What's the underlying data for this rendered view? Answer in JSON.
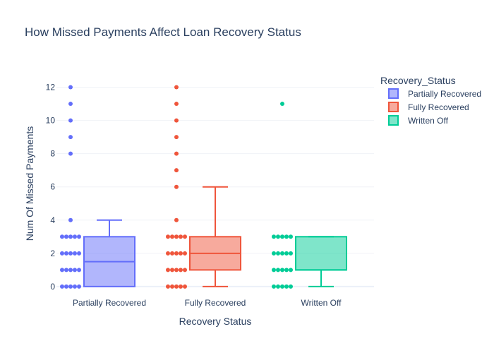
{
  "chart_data": {
    "type": "box",
    "title": "How Missed Payments Affect Loan Recovery Status",
    "xlabel": "Recovery Status",
    "ylabel": "Num Of Missed Payments",
    "ylim": [
      -0.6,
      13
    ],
    "yticks": [
      0,
      2,
      4,
      6,
      8,
      10,
      12
    ],
    "categories": [
      "Partially Recovered",
      "Fully Recovered",
      "Written Off"
    ],
    "legend": {
      "title": "Recovery_Status",
      "position": "top-right"
    },
    "grid": true,
    "series": [
      {
        "name": "Partially Recovered",
        "color": "#636efa",
        "fill": "rgba(99,110,250,0.5)",
        "box": {
          "min": 0,
          "q1": 0,
          "median": 1.5,
          "q3": 3,
          "upper_whisker": 4
        },
        "points": [
          0,
          1,
          2,
          3,
          4,
          8,
          9,
          10,
          11,
          12
        ]
      },
      {
        "name": "Fully Recovered",
        "color": "#ef553b",
        "fill": "rgba(239,85,59,0.5)",
        "box": {
          "min": 0,
          "q1": 1,
          "median": 2,
          "q3": 3,
          "upper_whisker": 6
        },
        "points": [
          0,
          1,
          2,
          3,
          4,
          6,
          7,
          8,
          9,
          10,
          11,
          12
        ]
      },
      {
        "name": "Written Off",
        "color": "#00cc96",
        "fill": "rgba(0,204,150,0.5)",
        "box": {
          "min": 0,
          "q1": 1,
          "median": 1,
          "q3": 3,
          "upper_whisker": 3
        },
        "points": [
          0,
          1,
          2,
          3,
          11
        ]
      }
    ]
  }
}
